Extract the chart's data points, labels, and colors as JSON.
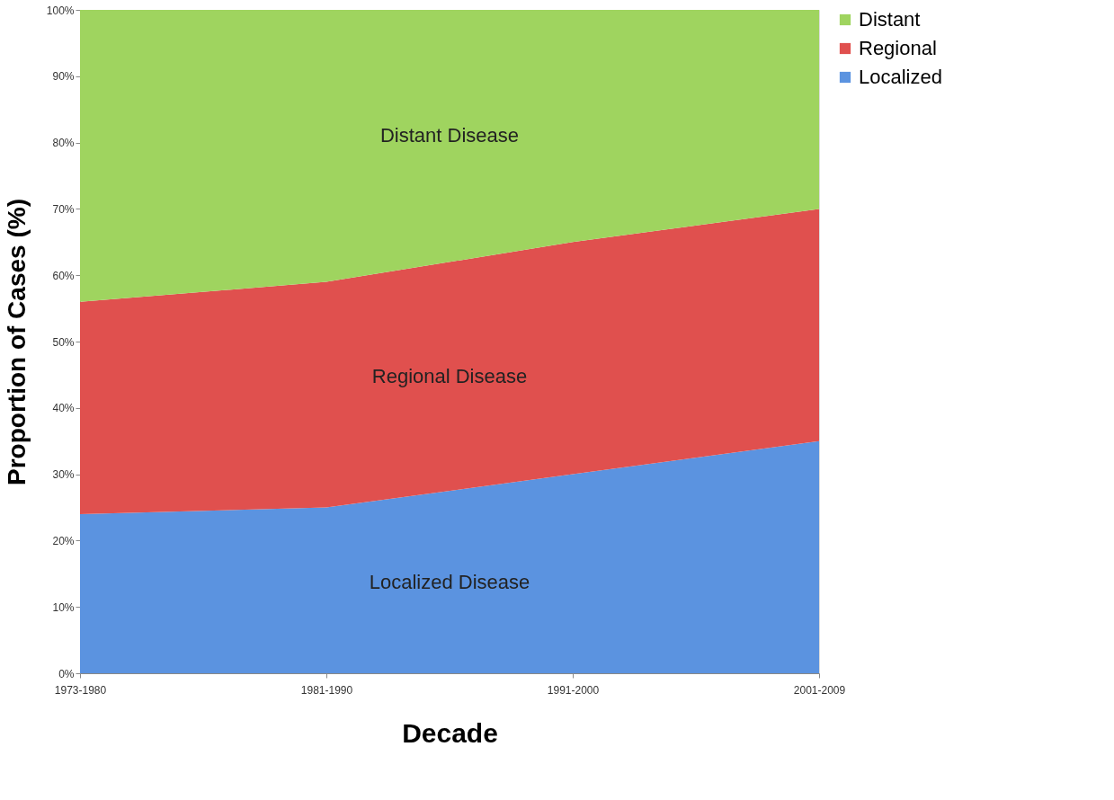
{
  "chart_data": {
    "type": "area",
    "stacked": true,
    "xlabel": "Decade",
    "ylabel": "Proportion of Cases (%)",
    "categories": [
      "1973-1980",
      "1981-1990",
      "1991-2000",
      "2001-2009"
    ],
    "series": [
      {
        "name": "Localized",
        "color": "#5b93e0",
        "values": [
          24,
          25,
          30,
          35
        ]
      },
      {
        "name": "Regional",
        "color": "#e0504e",
        "values": [
          32,
          34,
          35,
          35
        ]
      },
      {
        "name": "Distant",
        "color": "#9fd45f",
        "values": [
          44,
          41,
          35,
          30
        ]
      }
    ],
    "ylim": [
      0,
      100
    ],
    "yticks": [
      {
        "value": 0,
        "label": "0%"
      },
      {
        "value": 10,
        "label": "10%"
      },
      {
        "value": 20,
        "label": "20%"
      },
      {
        "value": 30,
        "label": "30%"
      },
      {
        "value": 40,
        "label": "40%"
      },
      {
        "value": 50,
        "label": "50%"
      },
      {
        "value": 60,
        "label": "60%"
      },
      {
        "value": 70,
        "label": "70%"
      },
      {
        "value": 80,
        "label": "80%"
      },
      {
        "value": 90,
        "label": "90%"
      },
      {
        "value": 100,
        "label": "100%"
      }
    ],
    "annotations": [
      "Distant Disease",
      "Regional Disease",
      "Localized Disease"
    ],
    "grid": false,
    "legend": "right"
  }
}
